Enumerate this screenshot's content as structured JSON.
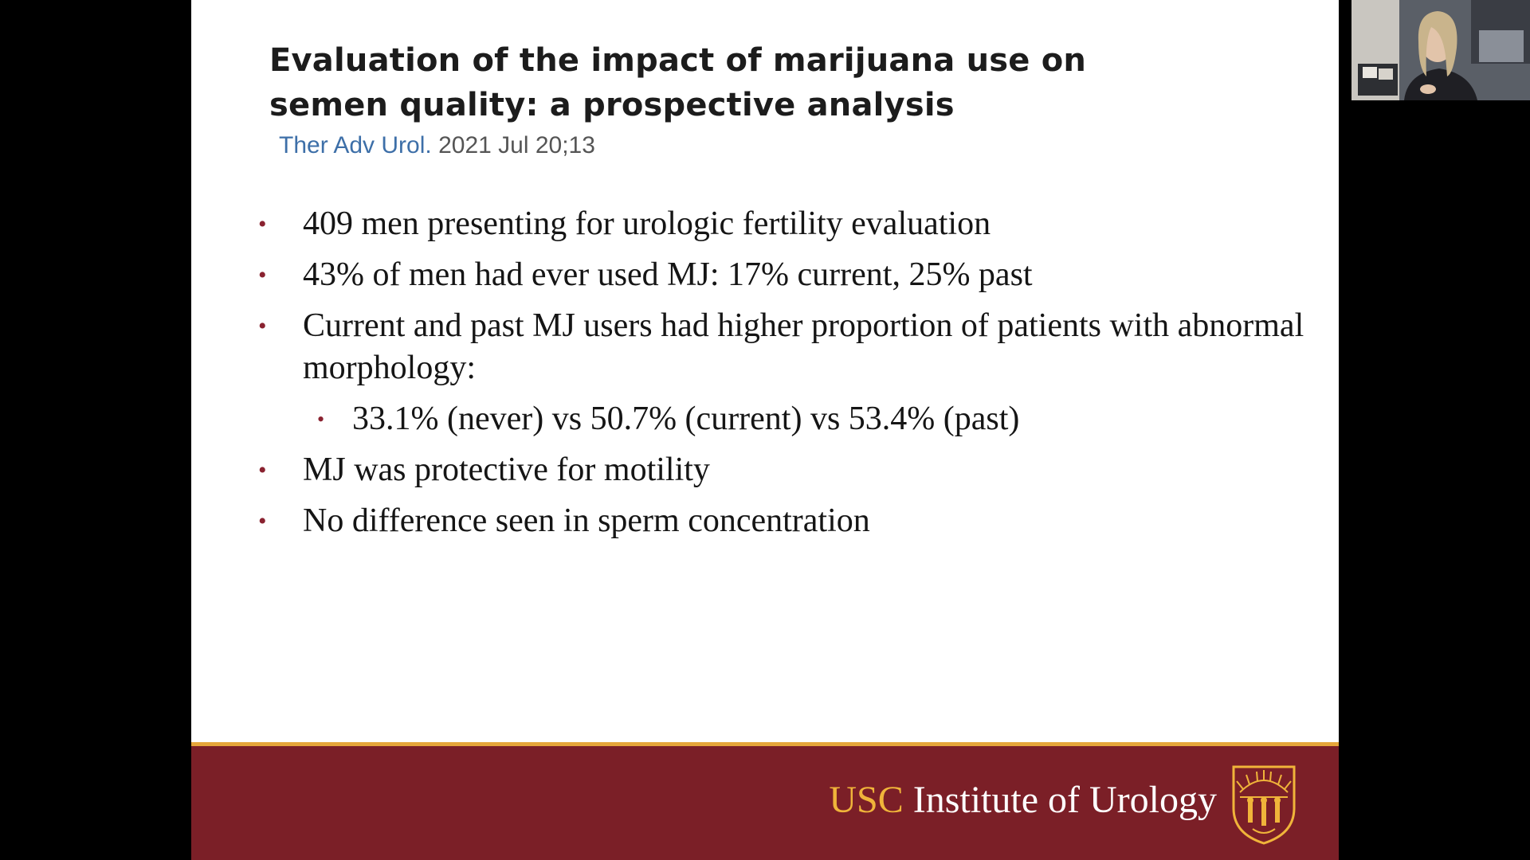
{
  "slide": {
    "title": "Evaluation of the impact of marijuana use on semen quality: a prospective analysis",
    "citation": {
      "journal": "Ther Adv Urol.",
      "date": "2021 Jul 20;13"
    },
    "bullets": [
      {
        "level": 1,
        "text": "409 men presenting for urologic fertility evaluation"
      },
      {
        "level": 1,
        "text": "43% of men had ever used MJ: 17% current, 25% past"
      },
      {
        "level": 1,
        "text": "Current and past MJ users had higher proportion of patients with abnormal morphology:"
      },
      {
        "level": 2,
        "text": "33.1% (never) vs 50.7% (current) vs 53.4% (past)"
      },
      {
        "level": 1,
        "text": "MJ was protective for motility"
      },
      {
        "level": 1,
        "text": "No difference seen in sperm concentration"
      }
    ],
    "bullet_glyph": "•",
    "footer": {
      "brand_usc": "USC",
      "brand_institute": "Institute of Urology",
      "seal_icon": "usc-seal-icon"
    }
  },
  "webcam": {
    "icon": "presenter-video-icon"
  },
  "colors": {
    "background": "#000000",
    "slide": "#ffffff",
    "footer": "#7b1f27",
    "accent_gold": "#f0b43a",
    "bullet": "#8a2230",
    "citation_link": "#3d6fa8"
  }
}
